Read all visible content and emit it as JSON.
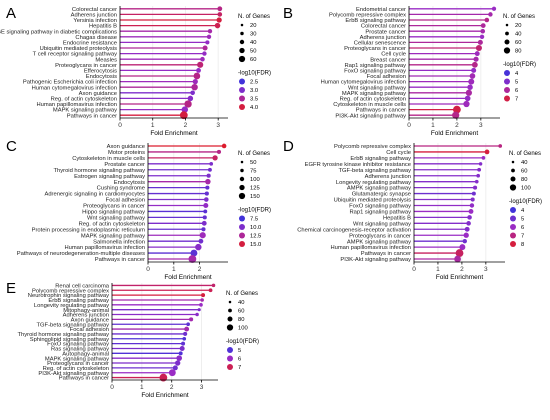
{
  "figure": {
    "panels": [
      "A",
      "B",
      "C",
      "D",
      "E"
    ]
  },
  "colors": {
    "fdr_high": "#e41a1c",
    "fdr_mid": "#9a2cc4",
    "fdr_low": "#2b35e0",
    "axis": "#000000",
    "grid": "#ebebeb"
  },
  "chart_data": [
    {
      "panel": "A",
      "type": "lollipop",
      "xlabel": "Fold Enrichment",
      "ylabel": "",
      "xlim": [
        0,
        3.3
      ],
      "xticks": [
        0,
        1,
        2,
        3
      ],
      "legend_size_title": "N. of Genes",
      "legend_size_values": [
        20,
        30,
        40,
        50,
        60
      ],
      "legend_color_title": "-log10(FDR)",
      "legend_color_values": [
        2.5,
        3.0,
        3.5,
        4.0
      ],
      "color_range": [
        2.3,
        4.2
      ],
      "size_range": [
        20,
        60
      ],
      "categories": [
        "Colorectal cancer",
        "Adherens junction",
        "Yersinia infection",
        "Hepatitis B",
        "AGE-RAGE signaling pathway in diabetic complications",
        "Chagas disease",
        "Endocrine resistance",
        "Ubiquitin mediated proteolysis",
        "T cell receptor signaling pathway",
        "Measles",
        "Proteoglycans in cancer",
        "Efferocytosis",
        "Endocytosis",
        "Pathogenic Escherichia coli infection",
        "Human cytomegalovirus infection",
        "Axon guidance",
        "Reg. of actin cytoskeleton",
        "Human papillomavirus infection",
        "MAPK signaling pathway",
        "Pathways in cancer"
      ],
      "fold_enrichment": [
        3.05,
        3.05,
        3.03,
        2.98,
        2.75,
        2.72,
        2.67,
        2.6,
        2.58,
        2.52,
        2.45,
        2.4,
        2.35,
        2.3,
        2.28,
        2.22,
        2.15,
        2.08,
        1.98,
        1.95
      ],
      "n_genes": [
        34,
        32,
        38,
        40,
        30,
        30,
        28,
        36,
        30,
        32,
        46,
        34,
        50,
        38,
        48,
        32,
        40,
        56,
        48,
        60
      ],
      "neg_log10_fdr": [
        3.6,
        3.8,
        4.0,
        3.9,
        3.4,
        3.3,
        3.2,
        3.5,
        3.2,
        3.3,
        3.7,
        3.2,
        3.6,
        3.3,
        3.5,
        3.0,
        3.1,
        3.6,
        3.2,
        4.0
      ]
    },
    {
      "panel": "B",
      "type": "lollipop",
      "xlabel": "Fold Enrichment",
      "ylabel": "",
      "xlim": [
        0,
        3.8
      ],
      "xticks": [
        0,
        1,
        2,
        3
      ],
      "legend_size_title": "N. of Genes",
      "legend_size_values": [
        20,
        40,
        60,
        80
      ],
      "legend_color_title": "-log10(FDR)",
      "legend_color_values": [
        4,
        5,
        6,
        7
      ],
      "color_range": [
        3.5,
        7.5
      ],
      "size_range": [
        20,
        80
      ],
      "categories": [
        "Endometrial cancer",
        "Polycomb repressive complex",
        "ErbB signaling pathway",
        "Colorectal cancer",
        "Prostate cancer",
        "Adherens junction",
        "Cellular senescence",
        "Proteoglycans in cancer",
        "Cell cycle",
        "Breast cancer",
        "Rap1 signaling pathway",
        "FoxO signaling pathway",
        "Focal adhesion",
        "Human cytomegalovirus infection",
        "Wnt signaling pathway",
        "MAPK signaling pathway",
        "Reg. of actin cytoskeleton",
        "Cytoskeleton in muscle cells",
        "Pathways in cancer",
        "PI3K-Akt signaling pathway"
      ],
      "fold_enrichment": [
        3.55,
        3.4,
        3.25,
        3.1,
        3.08,
        3.05,
        2.98,
        2.92,
        2.85,
        2.8,
        2.75,
        2.7,
        2.65,
        2.6,
        2.55,
        2.5,
        2.45,
        2.4,
        2.0,
        1.95
      ],
      "n_genes": [
        34,
        36,
        38,
        40,
        38,
        36,
        44,
        58,
        42,
        46,
        54,
        44,
        52,
        56,
        50,
        60,
        52,
        60,
        80,
        72
      ],
      "neg_log10_fdr": [
        5.5,
        5.8,
        6.2,
        6.0,
        5.8,
        5.5,
        6.0,
        6.5,
        5.6,
        5.8,
        6.2,
        5.4,
        5.7,
        5.6,
        5.5,
        5.9,
        5.4,
        5.6,
        7.0,
        6.2
      ]
    },
    {
      "panel": "C",
      "type": "lollipop",
      "xlabel": "Fold Enrichment",
      "ylabel": "",
      "xlim": [
        0,
        3.1
      ],
      "xticks": [
        0,
        1,
        2
      ],
      "legend_size_title": "N. of Genes",
      "legend_size_values": [
        50,
        75,
        100,
        125,
        150
      ],
      "legend_color_title": "-log10(FDR)",
      "legend_color_values": [
        7.5,
        10.0,
        12.5,
        15.0
      ],
      "color_range": [
        6.5,
        16
      ],
      "size_range": [
        50,
        150
      ],
      "categories": [
        "Axon guidance",
        "Motor proteins",
        "Cytoskeleton in muscle cells",
        "Prostate cancer",
        "Thyroid hormone signaling pathway",
        "Estrogen signaling pathway",
        "Endocytosis",
        "Cushing syndrome",
        "Adrenergic signaling in cardiomyocytes",
        "Focal adhesion",
        "Proteoglycans in cancer",
        "Hippo signaling pathway",
        "Wnt signaling pathway",
        "Reg. of actin cytoskeleton",
        "Protein processing in endoplasmic reticulum",
        "MAPK signaling pathway",
        "Salmonella infection",
        "Human papillomavirus infection",
        "Pathways of neurodegeneration-multiple diseases",
        "Pathways in cancer"
      ],
      "fold_enrichment": [
        2.95,
        2.75,
        2.6,
        2.45,
        2.4,
        2.35,
        2.32,
        2.3,
        2.28,
        2.26,
        2.24,
        2.22,
        2.2,
        2.18,
        2.15,
        2.12,
        2.05,
        1.95,
        1.78,
        1.72
      ],
      "n_genes": [
        80,
        70,
        95,
        60,
        65,
        70,
        100,
        70,
        70,
        80,
        90,
        65,
        70,
        85,
        70,
        115,
        85,
        120,
        130,
        150
      ],
      "neg_log10_fdr": [
        15.5,
        13.0,
        14.0,
        10.0,
        9.5,
        10.0,
        12.0,
        9.0,
        9.0,
        10.0,
        11.0,
        8.5,
        9.0,
        10.0,
        9.0,
        11.5,
        9.5,
        10.5,
        8.5,
        12.0
      ]
    },
    {
      "panel": "D",
      "type": "lollipop",
      "xlabel": "Fold Enrichment",
      "ylabel": "",
      "xlim": [
        0,
        3.8
      ],
      "xticks": [
        0,
        1,
        2,
        3
      ],
      "legend_size_title": "N. of Genes",
      "legend_size_values": [
        40,
        60,
        80,
        100
      ],
      "legend_color_title": "-log10(FDR)",
      "legend_color_values": [
        4,
        5,
        6,
        7,
        8
      ],
      "color_range": [
        3.5,
        8.5
      ],
      "size_range": [
        40,
        100
      ],
      "categories": [
        "Polycomb repressive complex",
        "Cell cycle",
        "ErbB signaling pathway",
        "EGFR tyrosine kinase inhibitor resistance",
        "TGF-beta signaling pathway",
        "Adherens junction",
        "Longevity regulating pathway",
        "AMPK signaling pathway",
        "Glutamatergic synapse",
        "Ubiquitin mediated proteolysis",
        "FoxO signaling pathway",
        "Rap1 signaling pathway",
        "Hepatitis B",
        "Wnt signaling pathway",
        "Chemical carcinogenesis-receptor activation",
        "Proteoglycans in cancer",
        "AMPK signaling pathway",
        "Human papillomavirus infection",
        "Pathways in cancer",
        "PI3K-Akt signaling pathway"
      ],
      "fold_enrichment": [
        3.6,
        3.05,
        2.9,
        2.78,
        2.72,
        2.68,
        2.62,
        2.55,
        2.5,
        2.45,
        2.42,
        2.38,
        2.32,
        2.28,
        2.22,
        2.18,
        2.12,
        2.02,
        1.9,
        1.82
      ],
      "n_genes": [
        46,
        60,
        46,
        44,
        48,
        46,
        46,
        52,
        50,
        52,
        56,
        62,
        58,
        58,
        62,
        68,
        56,
        76,
        100,
        86
      ],
      "neg_log10_fdr": [
        7.0,
        8.0,
        6.0,
        5.5,
        5.5,
        5.5,
        5.5,
        5.5,
        5.0,
        5.5,
        5.8,
        6.0,
        5.5,
        5.5,
        5.5,
        6.0,
        5.0,
        6.0,
        7.5,
        6.5
      ]
    },
    {
      "panel": "E",
      "type": "lollipop",
      "xlabel": "Fold Enrichment",
      "ylabel": "",
      "xlim": [
        0,
        3.55
      ],
      "xticks": [
        0,
        1,
        2,
        3
      ],
      "legend_size_title": "N. of Genes",
      "legend_size_values": [
        40,
        60,
        80,
        100
      ],
      "legend_color_title": "-log10(FDR)",
      "legend_color_values": [
        5,
        6,
        7
      ],
      "color_range": [
        4.5,
        7.5
      ],
      "size_range": [
        40,
        100
      ],
      "categories": [
        "Renal cell carcinoma",
        "Polycomb repressive complex",
        "Neurotrophin signaling pathway",
        "ErbB signaling pathway",
        "Longevity regulating pathway",
        "Mitophagy-animal",
        "Adherens junction",
        "Axon guidance",
        "TGF-beta signaling pathway",
        "Focal adhesion",
        "Thyroid hormone signaling pathway",
        "Sphingolipid signaling pathway",
        "FoxO signaling pathway",
        "Ras signaling pathway",
        "Autophagy-animal",
        "MAPK signaling pathway",
        "Proteoglycans in cancer",
        "Reg. of actin cytoskeleton",
        "PI3K-Akt signaling pathway",
        "Pathways in cancer"
      ],
      "fold_enrichment": [
        3.4,
        3.3,
        3.05,
        3.02,
        2.98,
        2.92,
        2.85,
        2.65,
        2.55,
        2.5,
        2.45,
        2.42,
        2.38,
        2.35,
        2.3,
        2.25,
        2.2,
        2.12,
        2.02,
        1.72
      ],
      "n_genes": [
        44,
        48,
        50,
        44,
        46,
        40,
        44,
        52,
        46,
        62,
        52,
        46,
        50,
        64,
        50,
        72,
        68,
        64,
        88,
        100
      ],
      "neg_log10_fdr": [
        6.8,
        7.0,
        7.2,
        6.2,
        6.0,
        5.6,
        5.8,
        6.2,
        5.2,
        6.2,
        5.4,
        5.0,
        5.2,
        5.6,
        5.0,
        5.8,
        5.6,
        5.4,
        6.0,
        7.0
      ]
    }
  ]
}
